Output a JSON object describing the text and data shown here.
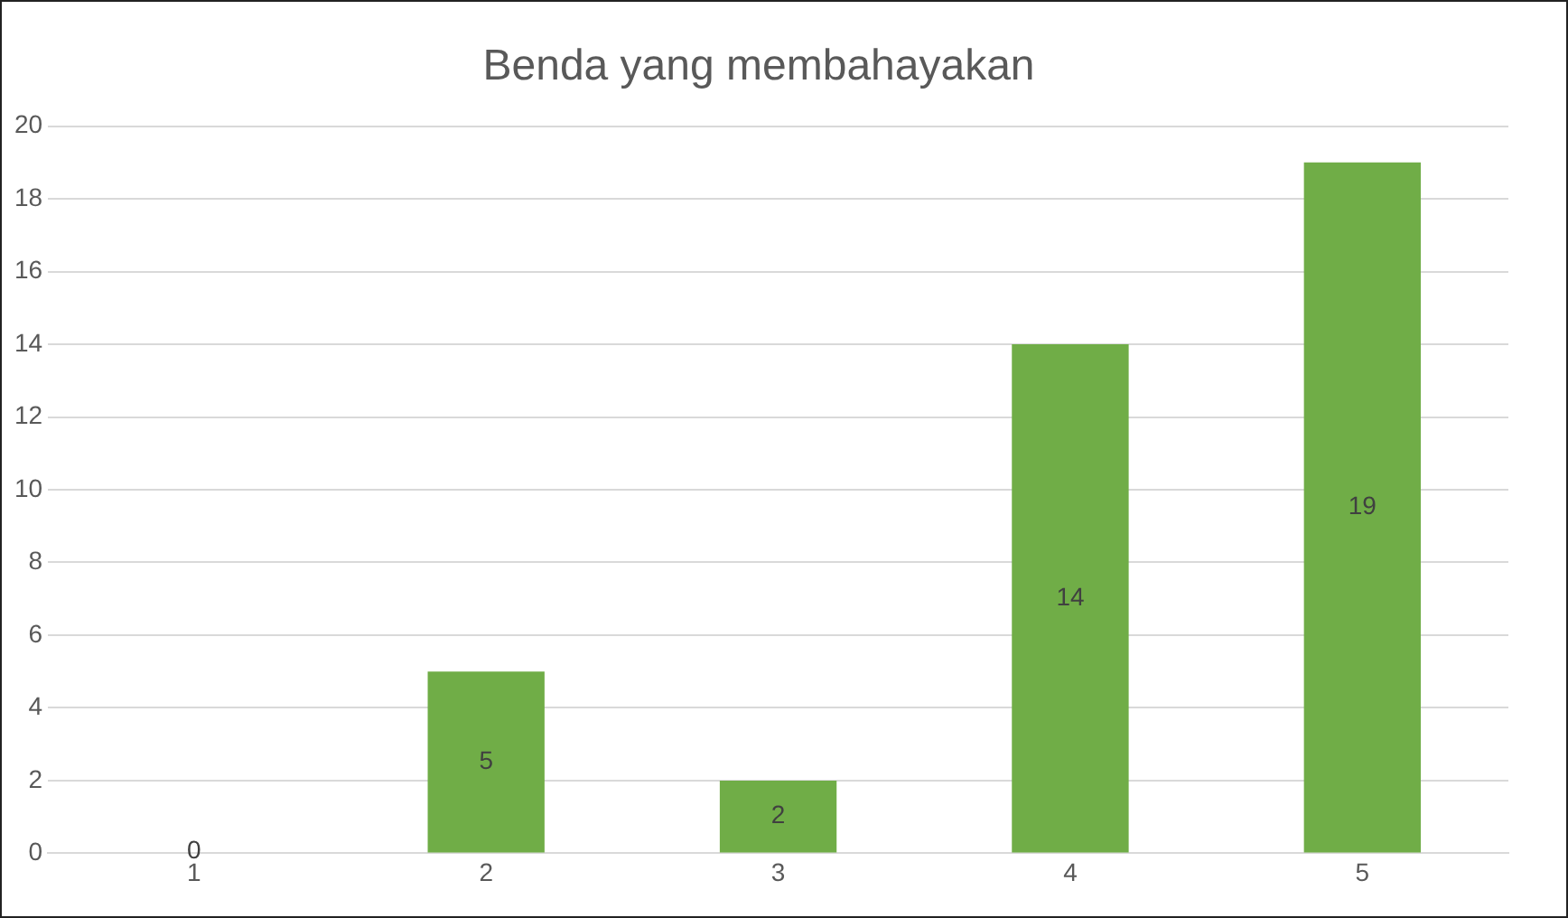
{
  "chart_data": {
    "type": "bar",
    "title": "Benda yang membahayakan",
    "categories": [
      "1",
      "2",
      "3",
      "4",
      "5"
    ],
    "values": [
      0,
      5,
      2,
      14,
      19
    ],
    "color": "#70ad47",
    "ylim": [
      0,
      20
    ],
    "yticks": [
      0,
      2,
      4,
      6,
      8,
      10,
      12,
      14,
      16,
      18,
      20
    ],
    "grid": "y",
    "legend": false,
    "data_labels": true
  }
}
